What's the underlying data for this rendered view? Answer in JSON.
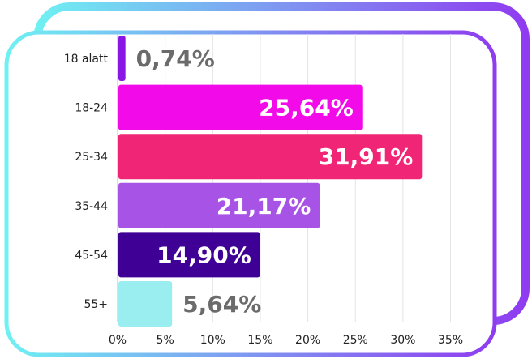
{
  "chart_data": {
    "type": "bar",
    "orientation": "horizontal",
    "categories": [
      "18 alatt",
      "18-24",
      "25-34",
      "35-44",
      "45-54",
      "55+"
    ],
    "values": [
      0.74,
      25.64,
      31.91,
      21.17,
      14.9,
      5.64
    ],
    "value_labels": [
      "0,74%",
      "25,64%",
      "31,91%",
      "21,17%",
      "14,90%",
      "5,64%"
    ],
    "bar_colors": [
      "#8a16e6",
      "#f20ae8",
      "#f02575",
      "#a754e6",
      "#3e0095",
      "#9aeef0"
    ],
    "x_ticks": [
      "0%",
      "5%",
      "10%",
      "15%",
      "20%",
      "25%",
      "30%",
      "35%"
    ],
    "xlim": [
      0,
      35
    ],
    "grid": true,
    "title": "",
    "xlabel": "",
    "ylabel": ""
  },
  "colors": {
    "frame_gradient_start": "#6ff0f2",
    "frame_gradient_end": "#8f3cf0",
    "label_inside": "#ffffff",
    "label_outside": "#6b6b6b",
    "gridline": "#e3e3e3",
    "text": "#222222"
  }
}
